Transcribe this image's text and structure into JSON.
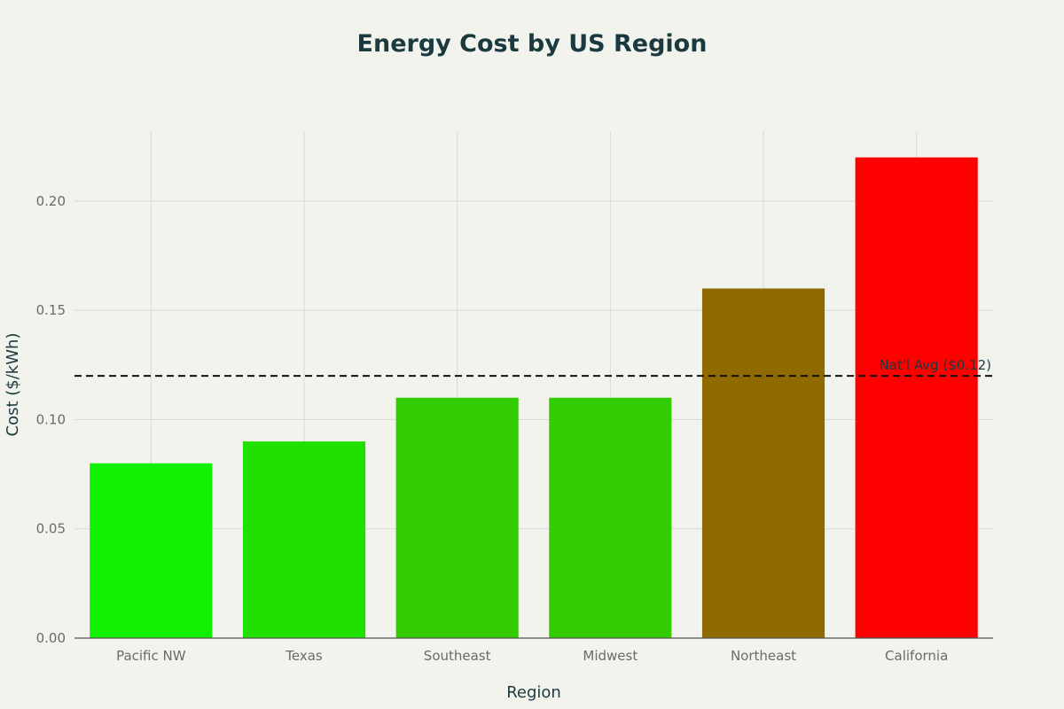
{
  "chart_data": {
    "type": "bar",
    "title": "Energy Cost by US Region",
    "xlabel": "Region",
    "ylabel": "Cost ($/kWh)",
    "categories": [
      "Pacific NW",
      "Texas",
      "Southeast",
      "Midwest",
      "Northeast",
      "California"
    ],
    "values": [
      0.08,
      0.09,
      0.11,
      0.11,
      0.16,
      0.22
    ],
    "bar_colors": [
      "#10f000",
      "#20e000",
      "#33cc00",
      "#33cc00",
      "#8f6a00",
      "#ff0000"
    ],
    "ylim": [
      0,
      0.232
    ],
    "yticks": [
      0.0,
      0.05,
      0.1,
      0.15,
      0.2
    ],
    "ytick_labels": [
      "0.00",
      "0.05",
      "0.10",
      "0.15",
      "0.20"
    ],
    "grid": true,
    "reference_line": {
      "value": 0.12,
      "label": "Nat'l Avg ($0.12)",
      "style": "dashed",
      "color": "#111111"
    }
  }
}
